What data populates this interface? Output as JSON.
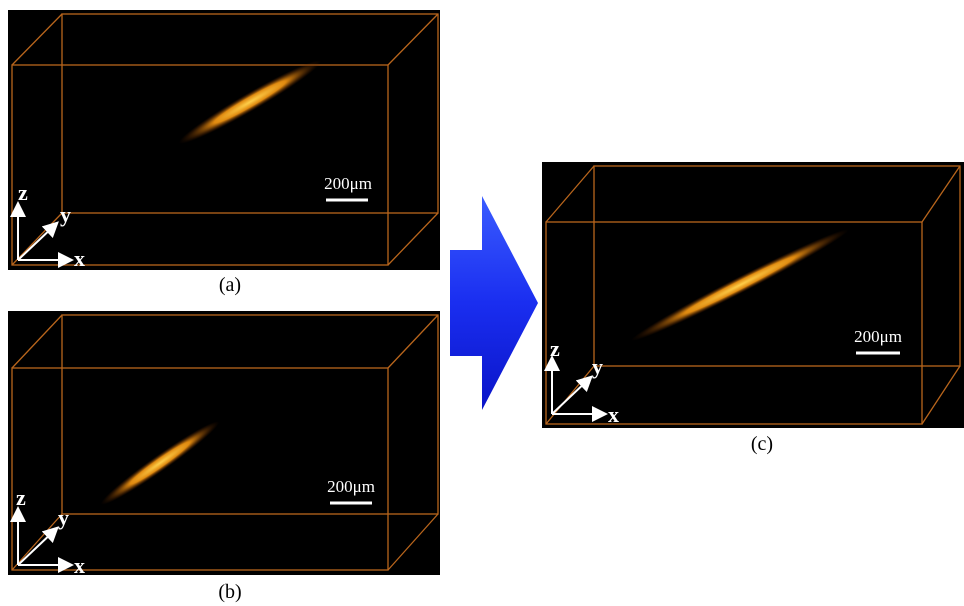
{
  "panels": [
    {
      "label": "(a)",
      "scale_bar": "200μm",
      "axes": {
        "z": "z",
        "y": "y",
        "x": "x"
      }
    },
    {
      "label": "(b)",
      "scale_bar": "200μm",
      "axes": {
        "z": "z",
        "y": "y",
        "x": "x"
      }
    },
    {
      "label": "(c)",
      "scale_bar": "200μm",
      "axes": {
        "z": "z",
        "y": "y",
        "x": "x"
      }
    }
  ]
}
